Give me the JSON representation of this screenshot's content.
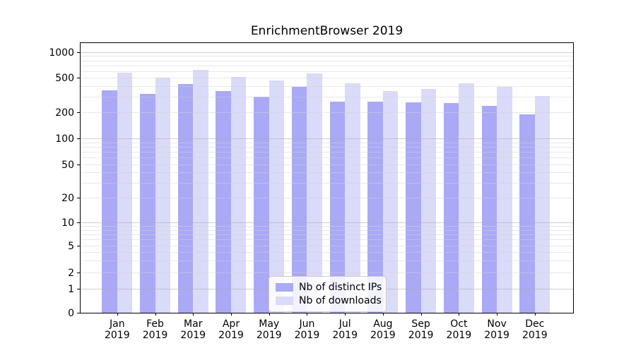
{
  "figure": {
    "title": "EnrichmentBrowser 2019"
  },
  "colors": {
    "distinct_ips": "#a9a9f6",
    "downloads": "#dadaf9",
    "major_grid": "rgba(175,175,175,0.60)",
    "minor_grid": "rgba(210,210,210,0.50)",
    "axis": "#000000"
  },
  "legend": {
    "items": [
      {
        "label": "Nb of distinct IPs",
        "color_key": "distinct_ips"
      },
      {
        "label": "Nb of downloads",
        "color_key": "downloads"
      }
    ]
  },
  "chart_data": {
    "type": "bar",
    "title": "EnrichmentBrowser 2019",
    "categories": [
      "Jan 2019",
      "Feb 2019",
      "Mar 2019",
      "Apr 2019",
      "May 2019",
      "Jun 2019",
      "Jul 2019",
      "Aug 2019",
      "Sep 2019",
      "Oct 2019",
      "Nov 2019",
      "Dec 2019"
    ],
    "series": [
      {
        "name": "Nb of distinct IPs",
        "values": [
          355,
          325,
          425,
          350,
          300,
          395,
          265,
          263,
          260,
          255,
          235,
          190
        ]
      },
      {
        "name": "Nb of downloads",
        "values": [
          575,
          500,
          620,
          510,
          465,
          560,
          430,
          350,
          370,
          430,
          390,
          310
        ]
      }
    ],
    "xlabel": "",
    "ylabel": "",
    "y_axis": {
      "scale": "symlog",
      "tick_values": [
        0,
        1,
        2,
        5,
        10,
        20,
        50,
        100,
        200,
        500,
        1000
      ],
      "range": [
        0,
        1300
      ],
      "grid": "both"
    },
    "legend_position": "lower center"
  }
}
